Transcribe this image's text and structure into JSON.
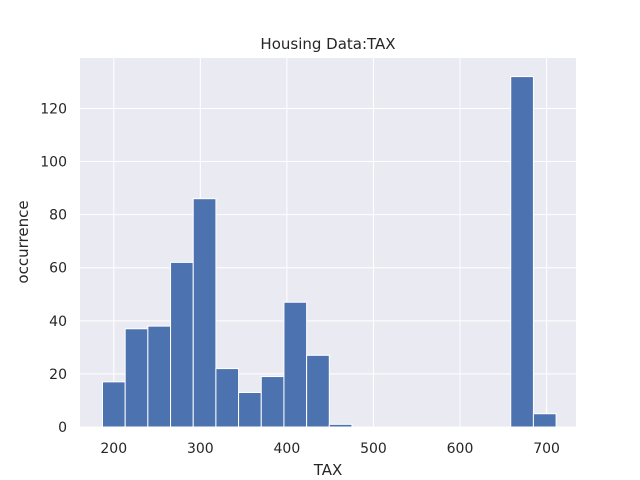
{
  "chart_data": {
    "type": "bar",
    "title": "Housing Data:TAX",
    "xlabel": "TAX",
    "ylabel": "occurrence",
    "xlim": [
      161,
      734
    ],
    "ylim": [
      0,
      139
    ],
    "xticks": [
      200,
      300,
      400,
      500,
      600,
      700
    ],
    "yticks": [
      0,
      20,
      40,
      60,
      80,
      100,
      120
    ],
    "bin_edges": [
      187,
      213.2,
      239.4,
      265.6,
      291.8,
      318,
      344.2,
      370.4,
      396.6,
      422.8,
      449,
      475.2,
      501.4,
      527.6,
      553.8,
      580,
      606.2,
      632.4,
      658.6,
      684.8,
      711
    ],
    "values": [
      17,
      37,
      38,
      62,
      86,
      22,
      13,
      19,
      47,
      27,
      1,
      0,
      0,
      0,
      0,
      0,
      0,
      0,
      132,
      5
    ],
    "grid": true,
    "colors": {
      "bar": "#4c72b0",
      "plot_background": "#eaeaf2",
      "grid": "#ffffff"
    }
  }
}
